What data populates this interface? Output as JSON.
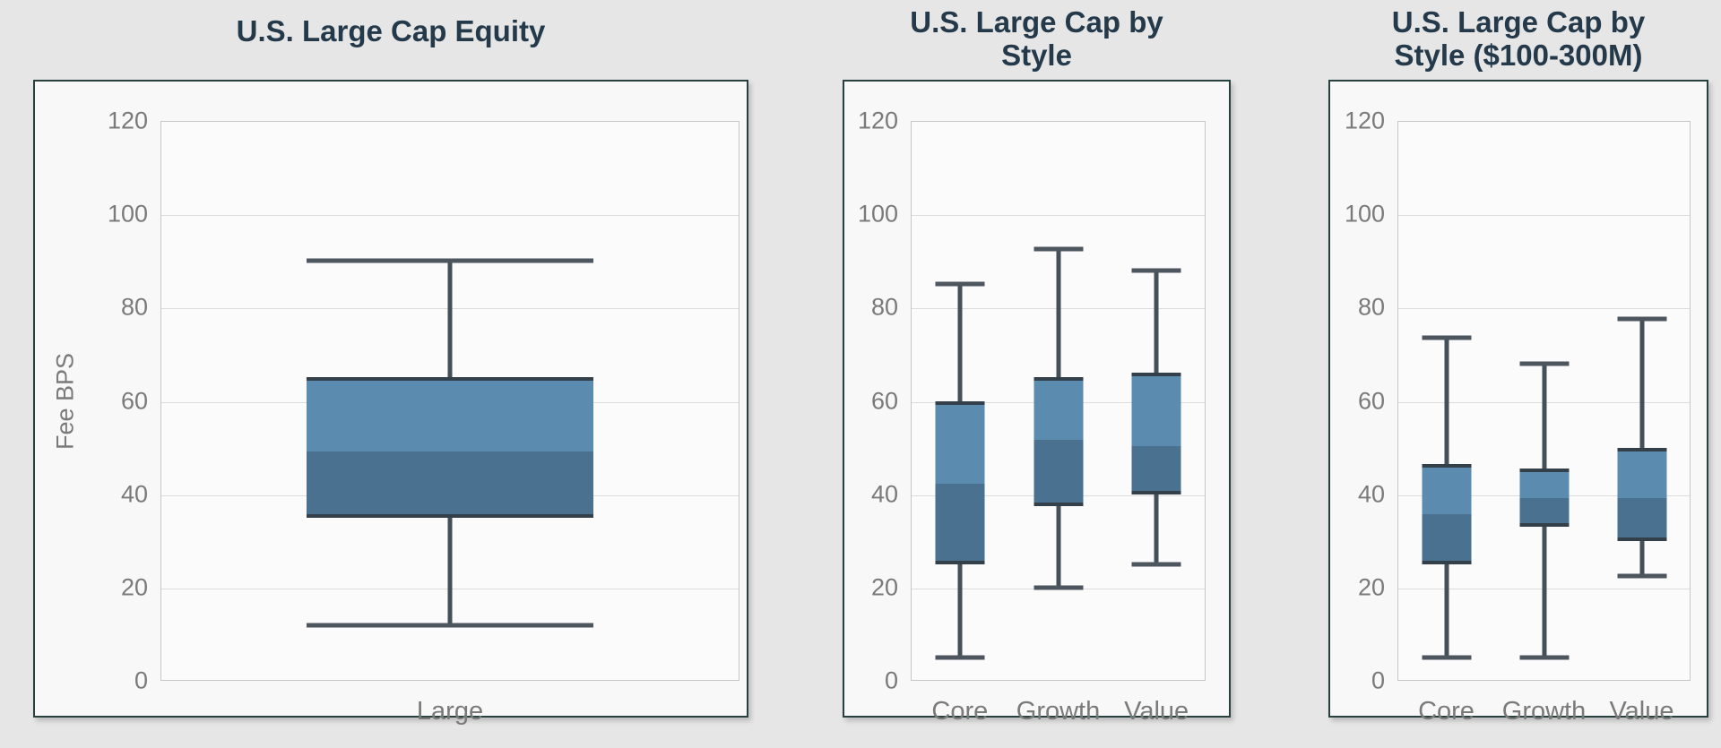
{
  "page": {
    "background_color": "#e6e6e6",
    "title_color": "#24394a",
    "text_color": "#7a7a7a"
  },
  "style": {
    "box_fill_upper": "#5b8bae",
    "box_fill_lower": "#4a7290",
    "box_edge": "#333f49",
    "whisker_color": "#454f57",
    "panel_border": "#26413e",
    "grid_color": "#dcdcdc"
  },
  "chart_data": [
    {
      "type": "boxplot",
      "title": "U.S. Large Cap Equity",
      "title_lines": [
        "U.S. Large Cap Equity"
      ],
      "ylabel": "Fee BPS",
      "ylim": [
        0,
        120
      ],
      "yticks": [
        0,
        20,
        40,
        60,
        80,
        100,
        120
      ],
      "grid": true,
      "categories": [
        "Large"
      ],
      "stats": [
        {
          "category": "Large",
          "low": 12,
          "q1": 35,
          "median": 50,
          "q3": 65,
          "high": 90
        }
      ]
    },
    {
      "type": "boxplot",
      "title": "U.S. Large Cap by Style",
      "title_lines": [
        "U.S. Large Cap by",
        "Style"
      ],
      "ylabel": "",
      "ylim": [
        0,
        120
      ],
      "yticks": [
        0,
        20,
        40,
        60,
        80,
        100,
        120
      ],
      "grid": true,
      "categories": [
        "Core",
        "Growth",
        "Value"
      ],
      "stats": [
        {
          "category": "Core",
          "low": 5,
          "q1": 25,
          "median": 43,
          "q3": 60,
          "high": 85
        },
        {
          "category": "Growth",
          "low": 20,
          "q1": 37.5,
          "median": 52.5,
          "q3": 65,
          "high": 92.5
        },
        {
          "category": "Value",
          "low": 25,
          "q1": 40,
          "median": 51,
          "q3": 66,
          "high": 88
        }
      ]
    },
    {
      "type": "boxplot",
      "title": "U.S. Large Cap by Style ($100-300M)",
      "title_lines": [
        "U.S. Large Cap by",
        "Style ($100-300M)"
      ],
      "ylabel": "",
      "ylim": [
        0,
        120
      ],
      "yticks": [
        0,
        20,
        40,
        60,
        80,
        100,
        120
      ],
      "grid": true,
      "categories": [
        "Core",
        "Growth",
        "Value"
      ],
      "stats": [
        {
          "category": "Core",
          "low": 5,
          "q1": 25,
          "median": 36.5,
          "q3": 46.5,
          "high": 73.5
        },
        {
          "category": "Growth",
          "low": 5,
          "q1": 33,
          "median": 40,
          "q3": 45.5,
          "high": 68
        },
        {
          "category": "Value",
          "low": 22.5,
          "q1": 30,
          "median": 40,
          "q3": 50,
          "high": 77.5
        }
      ]
    }
  ]
}
